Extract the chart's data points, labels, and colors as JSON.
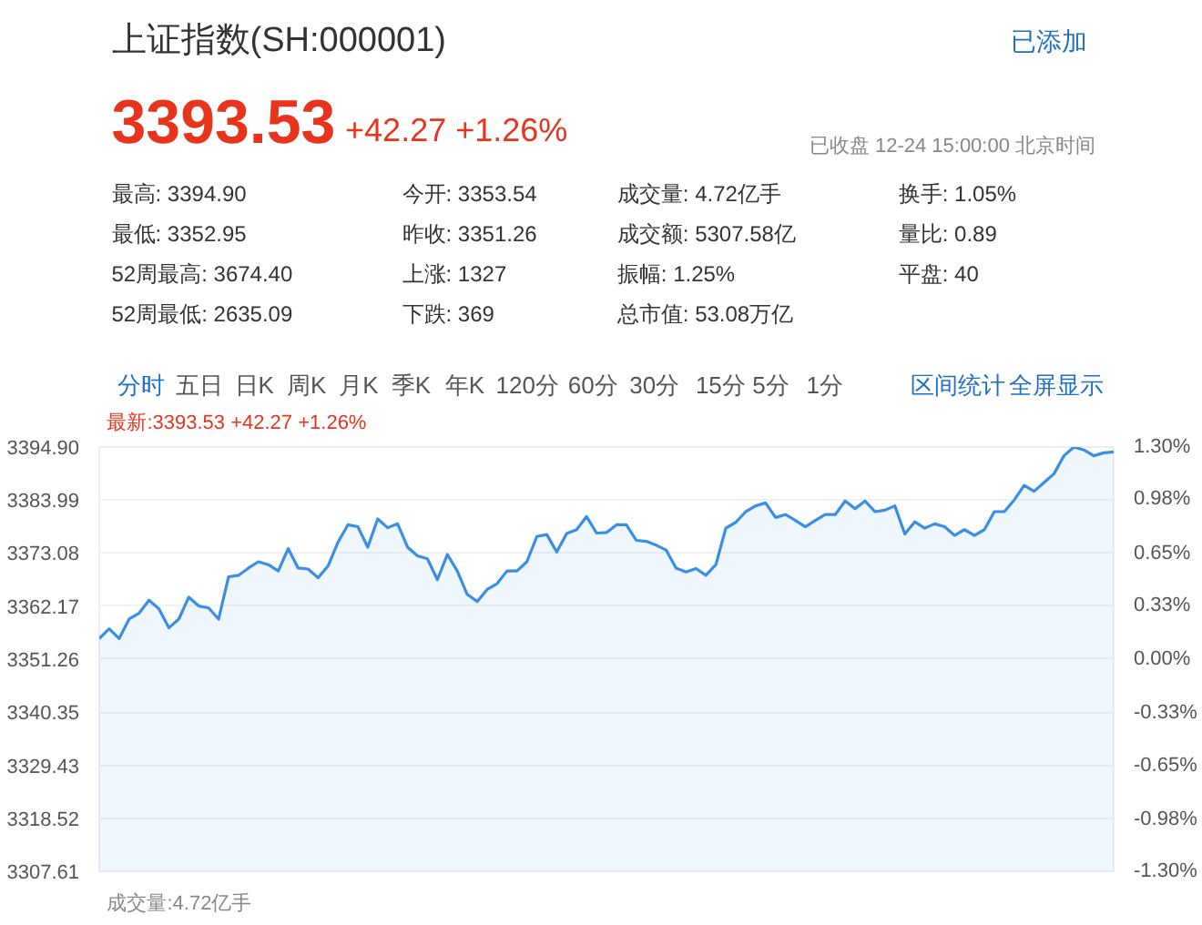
{
  "chart_data": {
    "type": "area",
    "title": "上证指数(SH:000001)",
    "annotations": [
      "3393.53",
      "+42.27 +1.26%",
      "已添加",
      "已收盘 12-24 15:00:00 北京时间",
      "最高: 3394.90",
      "今开: 3353.54",
      "成交量: 4.72亿手",
      "换手: 1.05%",
      "最低: 3352.95",
      "昨收: 3351.26",
      "成交额: 5307.58亿",
      "量比: 0.89",
      "52周最高: 3674.40",
      "上涨: 1327",
      "振幅: 1.25%",
      "平盘: 40",
      "52周最低: 2635.09",
      "下跌: 369",
      "总市值: 53.08万亿",
      "分时",
      "五日",
      "日K",
      "周K",
      "月K",
      "季K",
      "年K",
      "120分",
      "60分",
      "30分",
      "15分",
      "5分",
      "1分",
      "区间统计",
      "全屏显示",
      "最新:3393.53 +42.27 +1.26%",
      "成交量:4.72亿手"
    ],
    "categories": [
      null,
      null,
      null,
      null,
      null,
      null,
      null,
      null,
      null,
      null,
      null,
      null,
      null,
      null,
      null,
      null,
      null,
      null,
      null,
      null,
      null,
      null,
      null,
      null,
      null,
      null,
      null,
      null,
      null,
      null,
      null,
      null,
      null,
      null,
      null,
      null,
      null,
      null,
      null,
      null,
      null,
      null,
      null,
      null,
      null,
      null,
      null,
      null,
      null,
      null,
      null,
      null,
      null,
      null,
      null,
      null,
      null,
      null,
      null,
      null,
      null,
      null,
      null,
      null,
      null,
      null,
      null,
      null,
      null,
      null,
      null,
      null,
      null,
      null,
      null,
      null,
      null,
      null,
      null,
      null,
      null,
      null,
      null,
      null,
      null,
      null,
      null,
      null,
      null,
      null,
      null,
      null,
      null,
      null,
      null,
      null,
      null,
      null,
      null,
      null,
      null,
      null,
      null
    ],
    "series": [
      {
        "color": "#3b8ee5",
        "values": [
          3355.5,
          3357.5,
          3355.5,
          3359.5,
          3360.7,
          3363.4,
          3361.6,
          3357.7,
          3359.5,
          3364.0,
          3362.2,
          3361.8,
          3359.5,
          3368.2,
          3368.5,
          3370.0,
          3371.3,
          3370.7,
          3369.4,
          3374.0,
          3370.0,
          3369.8,
          3368.0,
          3370.4,
          3375.3,
          3378.9,
          3378.5,
          3374.3,
          3380.1,
          3378.3,
          3379.1,
          3374.3,
          3372.5,
          3371.9,
          3367.6,
          3372.8,
          3369.4,
          3364.6,
          3363.1,
          3365.6,
          3366.8,
          3369.4,
          3369.4,
          3371.3,
          3376.5,
          3376.9,
          3373.3,
          3377.1,
          3377.9,
          3380.6,
          3377.2,
          3377.3,
          3378.9,
          3378.9,
          3375.7,
          3375.5,
          3374.7,
          3373.7,
          3370.0,
          3369.2,
          3369.9,
          3368.5,
          3370.7,
          3378.2,
          3379.4,
          3381.6,
          3382.8,
          3383.4,
          3380.4,
          3381.0,
          3379.8,
          3378.5,
          3379.8,
          3381.0,
          3381.0,
          3383.8,
          3382.2,
          3383.8,
          3381.6,
          3381.9,
          3382.8,
          3377.0,
          3379.5,
          3378.2,
          3379.1,
          3378.5,
          3376.7,
          3377.9,
          3376.7,
          3377.9,
          3381.6,
          3381.6,
          3384.0,
          3387.0,
          3385.8,
          3387.6,
          3389.4,
          3393.1,
          3394.9,
          3394.3,
          3393.1,
          3393.7,
          3393.9
        ]
      }
    ],
    "ylim": [
      3307.61,
      3394.9
    ],
    "yticks": [
      {
        "value": 3394.9,
        "label": "3394.90"
      },
      3383.99,
      3373.08,
      3362.17,
      3351.26,
      3340.35,
      3329.43,
      3318.52,
      3307.61
    ],
    "y2lim": [
      -1.3,
      1.3
    ],
    "y2ticks": [
      {
        "value": 1.3,
        "label": "1.30%"
      },
      {
        "value": 0.98,
        "label": "0.98%"
      },
      {
        "value": 0.65,
        "label": "0.65%"
      },
      {
        "value": 0.33,
        "label": "0.33%"
      },
      {
        "value": 0.0,
        "label": "0.00%"
      },
      {
        "value": -0.33,
        "label": "-0.33%"
      },
      {
        "value": -0.65,
        "label": "-0.65%"
      },
      {
        "value": -0.98,
        "label": "-0.98%"
      },
      {
        "value": -1.3,
        "label": "-1.30%"
      }
    ],
    "grid": "y",
    "tick_labels": "y"
  }
}
